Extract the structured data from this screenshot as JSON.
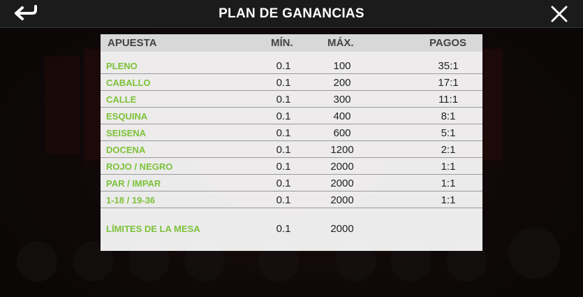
{
  "window": {
    "title": "PLAN DE GANANCIAS"
  },
  "table": {
    "headers": {
      "bet": "APUESTA",
      "min": "MÍN.",
      "max": "MÁX.",
      "payout": "PAGOS"
    },
    "rows": [
      {
        "bet": "PLENO",
        "min": "0.1",
        "max": "100",
        "payout": "35:1"
      },
      {
        "bet": "CABALLO",
        "min": "0.1",
        "max": "200",
        "payout": "17:1"
      },
      {
        "bet": "CALLE",
        "min": "0.1",
        "max": "300",
        "payout": "11:1"
      },
      {
        "bet": "ESQUINA",
        "min": "0.1",
        "max": "400",
        "payout": "8:1"
      },
      {
        "bet": "SEISENA",
        "min": "0.1",
        "max": "600",
        "payout": "5:1"
      },
      {
        "bet": "DOCENA",
        "min": "0.1",
        "max": "1200",
        "payout": "2:1"
      },
      {
        "bet": "ROJO / NEGRO",
        "min": "0.1",
        "max": "2000",
        "payout": "1:1"
      },
      {
        "bet": "PAR / IMPAR",
        "min": "0.1",
        "max": "2000",
        "payout": "1:1"
      },
      {
        "bet": "1-18 / 19-36",
        "min": "0.1",
        "max": "2000",
        "payout": "1:1"
      }
    ],
    "limits": {
      "label": "LÍMITES DE LA MESA",
      "min": "0.1",
      "max": "2000"
    }
  },
  "colors": {
    "bet_label": "#7cc23a",
    "header_bg": "#d8d8d8",
    "topbar_bg": "#1b1b1b"
  },
  "icons": {
    "back": "back-arrow-icon",
    "close": "close-icon"
  }
}
